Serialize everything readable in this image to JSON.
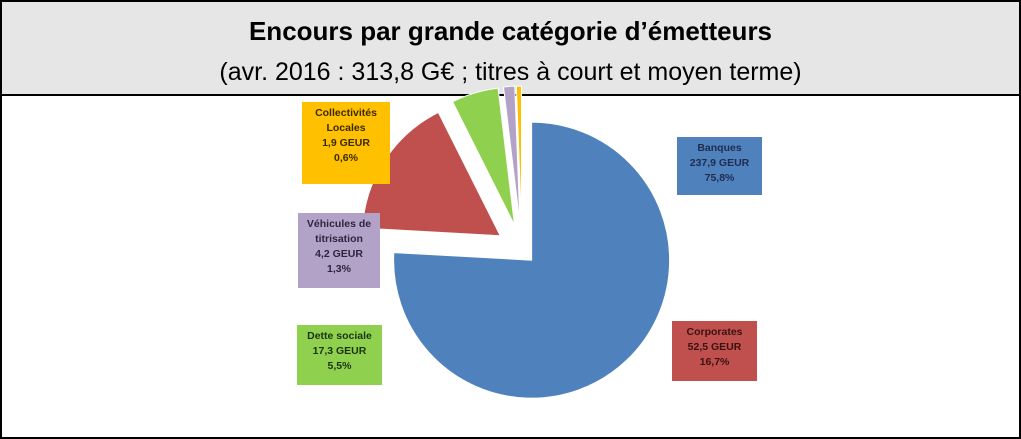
{
  "chart_data": {
    "type": "pie",
    "title": "Encours par grande catégorie d’émetteurs",
    "subtitle": "(avr. 2016 : 313,8 G€ ; titres à court et moyen terme)",
    "categories": [
      "Banques",
      "Corporates",
      "Dette sociale",
      "Véhicules de titrisation",
      "Collectivités Locales"
    ],
    "values": [
      75.8,
      16.7,
      5.5,
      1.3,
      0.6
    ],
    "value_labels": [
      "75,8%",
      "16,7%",
      "5,5%",
      "1,3%",
      "0,6%"
    ],
    "amounts": [
      237.9,
      52.5,
      17.3,
      4.2,
      1.9
    ],
    "amount_labels": [
      "237,9 GEUR",
      "52,5 GEUR",
      "17,3 GEUR",
      "4,2 GEUR",
      "1,9 GEUR"
    ],
    "colors": [
      "#4f81bd",
      "#c0504d",
      "#8fd14f",
      "#b3a2c7",
      "#ffc000"
    ],
    "text_colors": [
      "#1f2d4f",
      "#3a1212",
      "#1d3310",
      "#2d2540",
      "#3a2a00"
    ]
  }
}
